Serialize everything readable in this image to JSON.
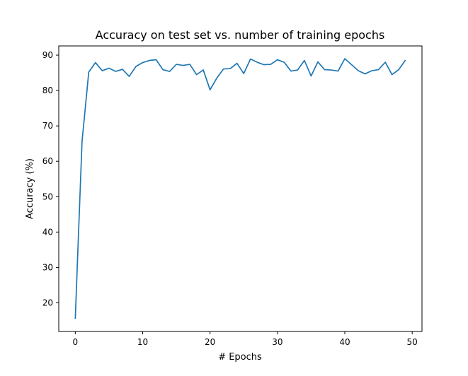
{
  "chart_data": {
    "type": "line",
    "title": "Accuracy on test set vs. number of training epochs",
    "xlabel": "# Epochs",
    "ylabel": "Accuracy (%)",
    "xlim": [
      -2.45,
      51.45
    ],
    "ylim": [
      11.9,
      92.6
    ],
    "xticks": [
      0,
      10,
      20,
      30,
      40,
      50
    ],
    "yticks": [
      20,
      30,
      40,
      50,
      60,
      70,
      80,
      90
    ],
    "grid": false,
    "legend": "none",
    "line_color": "#1f77b4",
    "series": [
      {
        "x": [
          0,
          1,
          2,
          3,
          4,
          5,
          6,
          7,
          8,
          9,
          10,
          11,
          12,
          13,
          14,
          15,
          16,
          17,
          18,
          19,
          20,
          21,
          22,
          23,
          24,
          25,
          26,
          27,
          28,
          29,
          30,
          31,
          32,
          33,
          34,
          35,
          36,
          37,
          38,
          39,
          40,
          41,
          42,
          43,
          44,
          45,
          46,
          47,
          48,
          49
        ],
        "values": [
          15.5,
          65.5,
          85.2,
          87.9,
          85.6,
          86.3,
          85.4,
          86.0,
          84.0,
          86.8,
          87.9,
          88.5,
          88.7,
          85.9,
          85.4,
          87.4,
          87.1,
          87.4,
          84.5,
          85.8,
          80.2,
          83.5,
          86.1,
          86.2,
          87.7,
          84.8,
          88.9,
          88.0,
          87.3,
          87.4,
          88.7,
          88.0,
          85.5,
          85.8,
          88.5,
          84.1,
          88.1,
          85.9,
          85.8,
          85.5,
          89.0,
          87.3,
          85.6,
          84.7,
          85.6,
          85.9,
          88.0,
          84.5,
          85.9,
          88.6
        ]
      }
    ]
  }
}
